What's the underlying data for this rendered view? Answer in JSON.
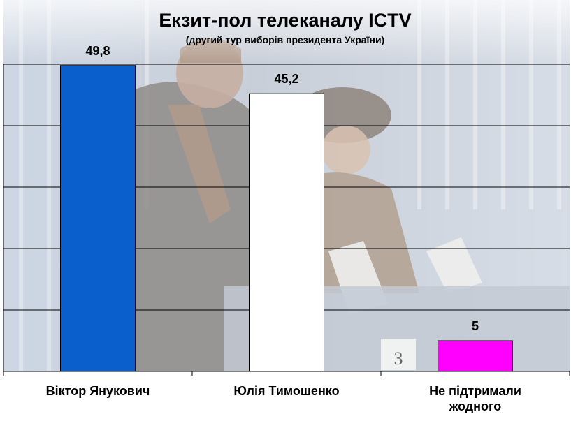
{
  "chart_data": {
    "type": "bar",
    "title": "Екзит-пол телеканалу ICTV",
    "subtitle": "(другий тур виборів президента України)",
    "categories": [
      [
        "Віктор Янукович"
      ],
      [
        "Юлія Тимошенко"
      ],
      [
        "Не підтримали",
        "жодного"
      ]
    ],
    "values": [
      49.8,
      45.2,
      5
    ],
    "value_labels": [
      "49,8",
      "45,2",
      "5"
    ],
    "bar_colors": [
      "#0a5fcc",
      "#ffffff",
      "#ff00ff"
    ],
    "ylim": [
      0,
      50
    ],
    "y_gridlines": [
      10,
      20,
      30,
      40,
      50
    ],
    "grid": true,
    "legend": "none",
    "background": "photo of voters casting ballots"
  }
}
